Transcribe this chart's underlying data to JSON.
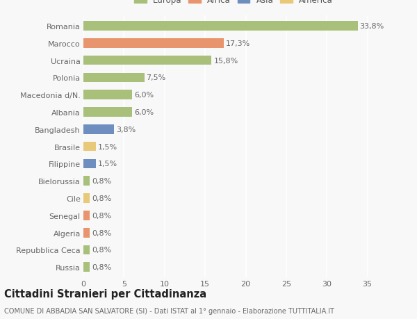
{
  "categories": [
    "Russia",
    "Repubblica Ceca",
    "Algeria",
    "Senegal",
    "Cile",
    "Bielorussia",
    "Filippine",
    "Brasile",
    "Bangladesh",
    "Albania",
    "Macedonia d/N.",
    "Polonia",
    "Ucraina",
    "Marocco",
    "Romania"
  ],
  "values": [
    0.8,
    0.8,
    0.8,
    0.8,
    0.8,
    0.8,
    1.5,
    1.5,
    3.8,
    6.0,
    6.0,
    7.5,
    15.8,
    17.3,
    33.8
  ],
  "labels": [
    "0,8%",
    "0,8%",
    "0,8%",
    "0,8%",
    "0,8%",
    "0,8%",
    "1,5%",
    "1,5%",
    "3,8%",
    "6,0%",
    "6,0%",
    "7,5%",
    "15,8%",
    "17,3%",
    "33,8%"
  ],
  "colors": [
    "#a8c07a",
    "#a8c07a",
    "#e8956d",
    "#e8956d",
    "#e8c97a",
    "#a8c07a",
    "#6e8ec0",
    "#e8c97a",
    "#6e8ec0",
    "#a8c07a",
    "#a8c07a",
    "#a8c07a",
    "#a8c07a",
    "#e8956d",
    "#a8c07a"
  ],
  "legend_labels": [
    "Europa",
    "Africa",
    "Asia",
    "America"
  ],
  "legend_colors": [
    "#a8c07a",
    "#e8956d",
    "#6e8ec0",
    "#e8c97a"
  ],
  "title": "Cittadini Stranieri per Cittadinanza",
  "subtitle": "COMUNE DI ABBADIA SAN SALVATORE (SI) - Dati ISTAT al 1° gennaio - Elaborazione TUTTITALIA.IT",
  "xlim": [
    0,
    37
  ],
  "xticks": [
    0,
    5,
    10,
    15,
    20,
    25,
    30,
    35
  ],
  "bg_color": "#f8f8f8",
  "bar_height": 0.55,
  "label_fontsize": 8,
  "tick_fontsize": 8,
  "title_fontsize": 10.5,
  "subtitle_fontsize": 7
}
